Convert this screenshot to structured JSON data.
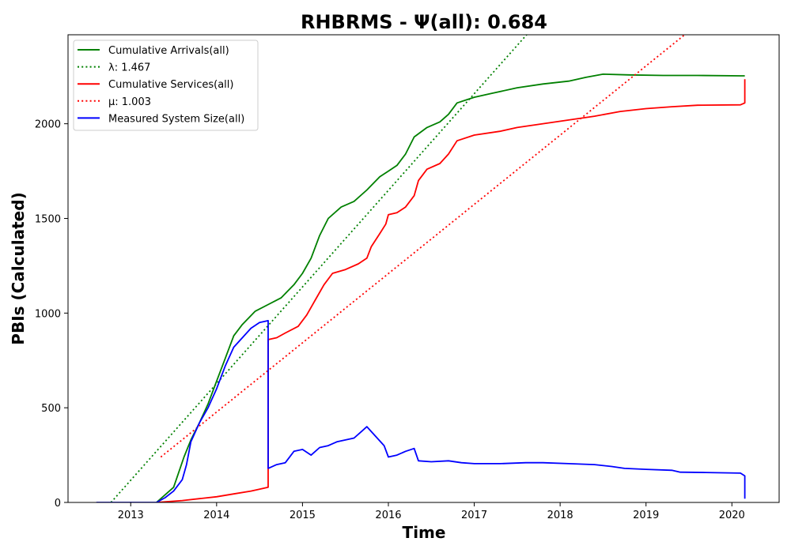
{
  "chart_data": {
    "type": "line",
    "title": "RHBRMS -  Ψ(all): 0.684",
    "xlabel": "Time",
    "ylabel": "PBIs (Calculated)",
    "xlim": [
      2012.27,
      2020.55
    ],
    "ylim": [
      0,
      2470
    ],
    "x_ticks": [
      2013,
      2014,
      2015,
      2016,
      2017,
      2018,
      2019,
      2020
    ],
    "y_ticks": [
      0,
      500,
      1000,
      1500,
      2000
    ],
    "x_tick_labels": [
      "2013",
      "2014",
      "2015",
      "2016",
      "2017",
      "2018",
      "2019",
      "2020"
    ],
    "y_tick_labels": [
      "0",
      "500",
      "1000",
      "1500",
      "2000"
    ],
    "grid": false,
    "legend_position": "top-left",
    "series": [
      {
        "name": "Cumulative Arrivals(all)",
        "color": "#008000",
        "style": "solid",
        "points": [
          [
            2013.3,
            0
          ],
          [
            2013.5,
            80
          ],
          [
            2013.62,
            240
          ],
          [
            2013.7,
            330
          ],
          [
            2013.8,
            420
          ],
          [
            2013.9,
            520
          ],
          [
            2014.0,
            640
          ],
          [
            2014.1,
            760
          ],
          [
            2014.2,
            880
          ],
          [
            2014.3,
            940
          ],
          [
            2014.45,
            1010
          ],
          [
            2014.6,
            1045
          ],
          [
            2014.75,
            1080
          ],
          [
            2014.9,
            1150
          ],
          [
            2015.0,
            1210
          ],
          [
            2015.1,
            1290
          ],
          [
            2015.2,
            1410
          ],
          [
            2015.3,
            1500
          ],
          [
            2015.45,
            1560
          ],
          [
            2015.6,
            1590
          ],
          [
            2015.75,
            1650
          ],
          [
            2015.9,
            1720
          ],
          [
            2016.0,
            1750
          ],
          [
            2016.1,
            1780
          ],
          [
            2016.2,
            1840
          ],
          [
            2016.3,
            1930
          ],
          [
            2016.45,
            1980
          ],
          [
            2016.6,
            2010
          ],
          [
            2016.7,
            2050
          ],
          [
            2016.8,
            2110
          ],
          [
            2017.0,
            2140
          ],
          [
            2017.2,
            2160
          ],
          [
            2017.5,
            2190
          ],
          [
            2017.8,
            2210
          ],
          [
            2018.1,
            2225
          ],
          [
            2018.3,
            2245
          ],
          [
            2018.5,
            2262
          ],
          [
            2018.8,
            2258
          ],
          [
            2019.2,
            2255
          ],
          [
            2019.6,
            2255
          ],
          [
            2020.1,
            2253
          ],
          [
            2020.15,
            2253
          ]
        ]
      },
      {
        "name": "λ: 1.467",
        "color": "#008000",
        "style": "dotted",
        "points": [
          [
            2012.77,
            0
          ],
          [
            2017.61,
            2470
          ]
        ]
      },
      {
        "name": "Cumulative Services(all)",
        "color": "#ff0000",
        "style": "solid",
        "points": [
          [
            2013.3,
            0
          ],
          [
            2013.6,
            10
          ],
          [
            2013.8,
            20
          ],
          [
            2014.0,
            30
          ],
          [
            2014.2,
            45
          ],
          [
            2014.4,
            60
          ],
          [
            2014.55,
            75
          ],
          [
            2014.6,
            80
          ],
          [
            2014.6,
            860
          ],
          [
            2014.7,
            870
          ],
          [
            2014.8,
            895
          ],
          [
            2014.95,
            930
          ],
          [
            2015.05,
            990
          ],
          [
            2015.15,
            1070
          ],
          [
            2015.25,
            1150
          ],
          [
            2015.35,
            1210
          ],
          [
            2015.5,
            1230
          ],
          [
            2015.65,
            1260
          ],
          [
            2015.75,
            1290
          ],
          [
            2015.8,
            1350
          ],
          [
            2015.9,
            1420
          ],
          [
            2015.97,
            1470
          ],
          [
            2016.0,
            1520
          ],
          [
            2016.1,
            1530
          ],
          [
            2016.2,
            1560
          ],
          [
            2016.3,
            1620
          ],
          [
            2016.35,
            1700
          ],
          [
            2016.45,
            1760
          ],
          [
            2016.6,
            1790
          ],
          [
            2016.7,
            1840
          ],
          [
            2016.8,
            1910
          ],
          [
            2017.0,
            1940
          ],
          [
            2017.3,
            1960
          ],
          [
            2017.5,
            1980
          ],
          [
            2017.8,
            2000
          ],
          [
            2018.1,
            2020
          ],
          [
            2018.4,
            2040
          ],
          [
            2018.7,
            2065
          ],
          [
            2019.0,
            2080
          ],
          [
            2019.3,
            2090
          ],
          [
            2019.6,
            2098
          ],
          [
            2020.1,
            2100
          ],
          [
            2020.15,
            2110
          ],
          [
            2020.15,
            2235
          ]
        ]
      },
      {
        "name": "μ: 1.003",
        "color": "#ff0000",
        "style": "dotted",
        "points": [
          [
            2013.35,
            240
          ],
          [
            2019.45,
            2470
          ]
        ]
      },
      {
        "name": "Measured System Size(all)",
        "color": "#0000ff",
        "style": "solid",
        "points": [
          [
            2012.6,
            0
          ],
          [
            2013.3,
            0
          ],
          [
            2013.4,
            25
          ],
          [
            2013.5,
            60
          ],
          [
            2013.6,
            120
          ],
          [
            2013.65,
            200
          ],
          [
            2013.7,
            320
          ],
          [
            2013.8,
            420
          ],
          [
            2013.9,
            500
          ],
          [
            2014.0,
            600
          ],
          [
            2014.1,
            720
          ],
          [
            2014.2,
            820
          ],
          [
            2014.3,
            870
          ],
          [
            2014.4,
            920
          ],
          [
            2014.5,
            950
          ],
          [
            2014.6,
            960
          ],
          [
            2014.6,
            180
          ],
          [
            2014.7,
            200
          ],
          [
            2014.8,
            210
          ],
          [
            2014.9,
            270
          ],
          [
            2015.0,
            280
          ],
          [
            2015.1,
            250
          ],
          [
            2015.2,
            290
          ],
          [
            2015.3,
            300
          ],
          [
            2015.4,
            320
          ],
          [
            2015.5,
            330
          ],
          [
            2015.6,
            340
          ],
          [
            2015.7,
            380
          ],
          [
            2015.75,
            400
          ],
          [
            2015.85,
            350
          ],
          [
            2015.95,
            300
          ],
          [
            2016.0,
            240
          ],
          [
            2016.1,
            250
          ],
          [
            2016.2,
            270
          ],
          [
            2016.3,
            285
          ],
          [
            2016.35,
            220
          ],
          [
            2016.5,
            215
          ],
          [
            2016.7,
            220
          ],
          [
            2016.85,
            210
          ],
          [
            2017.0,
            205
          ],
          [
            2017.3,
            205
          ],
          [
            2017.6,
            210
          ],
          [
            2017.8,
            210
          ],
          [
            2018.1,
            205
          ],
          [
            2018.4,
            200
          ],
          [
            2018.6,
            190
          ],
          [
            2018.75,
            180
          ],
          [
            2019.0,
            175
          ],
          [
            2019.3,
            170
          ],
          [
            2019.4,
            160
          ],
          [
            2019.7,
            158
          ],
          [
            2020.1,
            155
          ],
          [
            2020.15,
            140
          ],
          [
            2020.15,
            20
          ]
        ]
      }
    ]
  }
}
